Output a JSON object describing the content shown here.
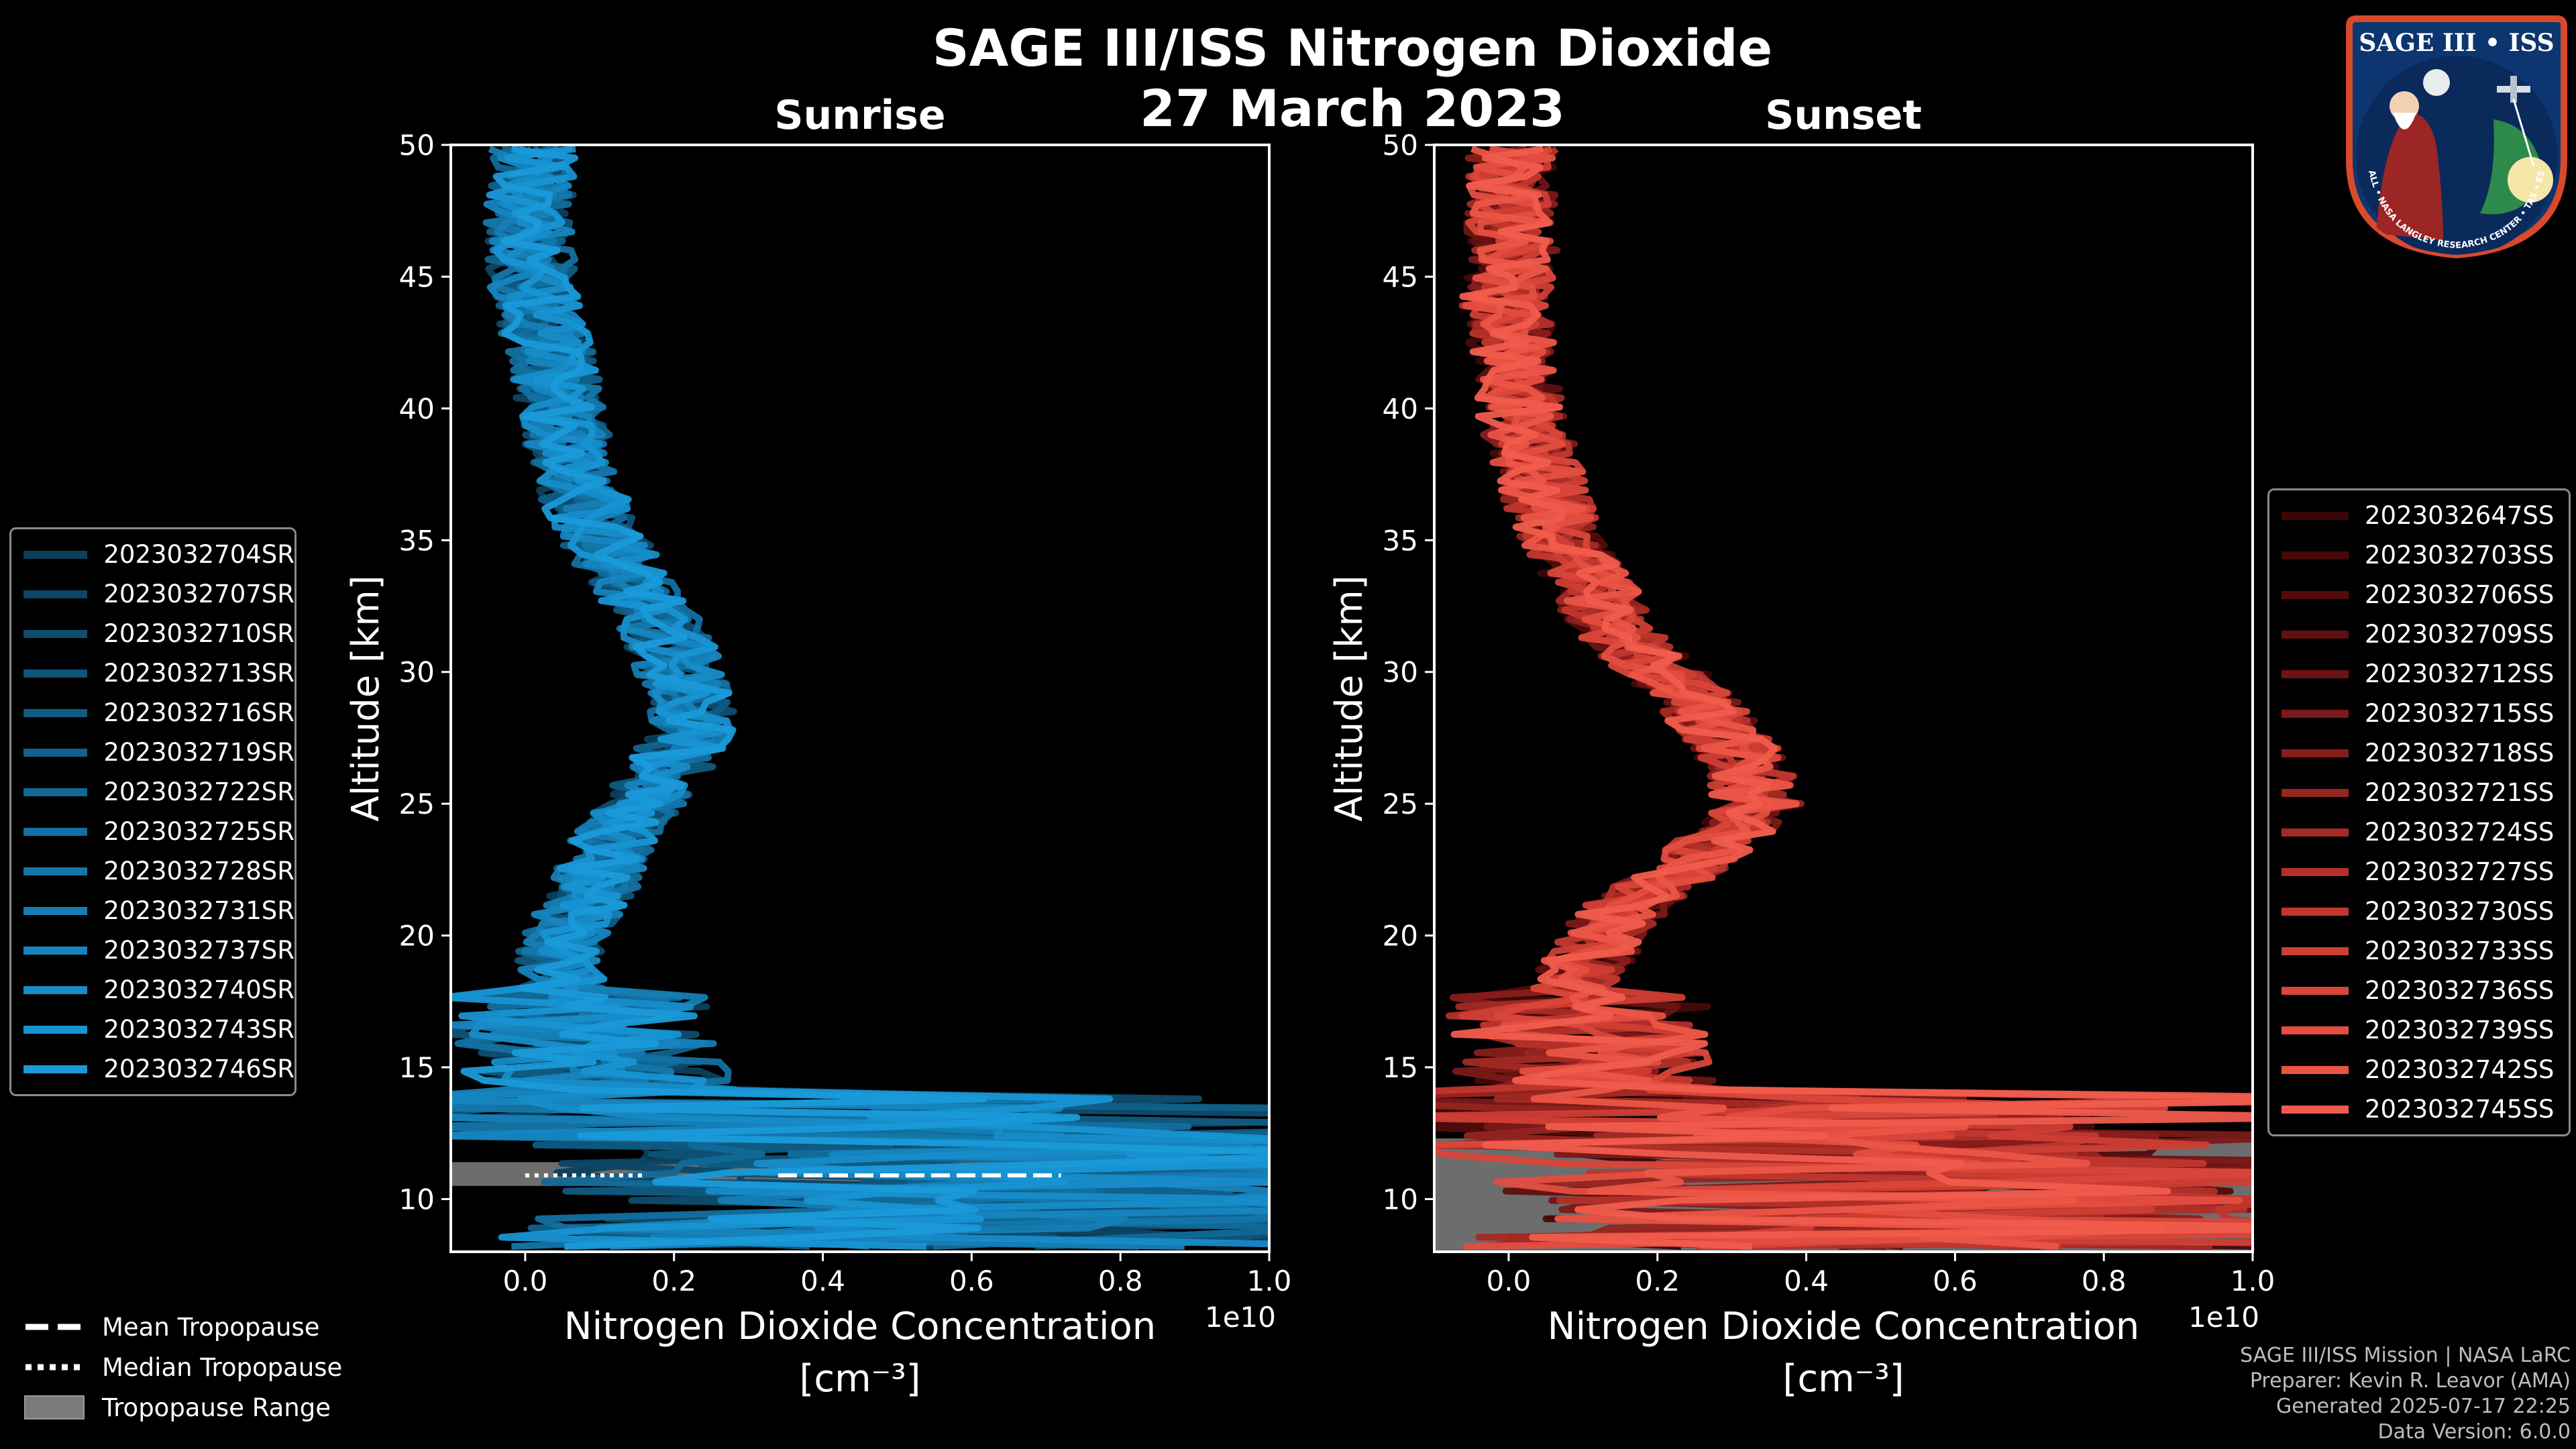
{
  "title": "SAGE III/ISS Nitrogen Dioxide",
  "date": "27 March 2023",
  "colors": {
    "sunrise": "#1a9ad6",
    "sunset": "#ef5a48",
    "trop_range": "#808080"
  },
  "chart_data": [
    {
      "type": "line",
      "panel": "Sunrise",
      "title": "Sunrise",
      "xlabel": "Nitrogen Dioxide Concentration",
      "xlabel_unit": "[cm⁻³]",
      "x_scale_label": "1e10",
      "ylabel": "Altitude [km]",
      "xlim": [
        -0.1,
        1.0
      ],
      "ylim": [
        8,
        50
      ],
      "xticks": [
        "0.0",
        "0.2",
        "0.4",
        "0.6",
        "0.8",
        "1.0"
      ],
      "yticks": [
        "10",
        "15",
        "20",
        "25",
        "30",
        "35",
        "40",
        "45",
        "50"
      ],
      "profile_mean": [
        [
          8.5,
          0.45
        ],
        [
          9,
          0.5
        ],
        [
          10,
          0.55
        ],
        [
          11,
          0.5
        ],
        [
          12,
          0.4
        ],
        [
          13,
          0.25
        ],
        [
          14,
          0.12
        ],
        [
          15,
          0.07
        ],
        [
          16,
          0.06
        ],
        [
          17,
          0.05
        ],
        [
          18,
          0.04
        ],
        [
          19,
          0.04
        ],
        [
          20,
          0.05
        ],
        [
          21,
          0.07
        ],
        [
          22,
          0.09
        ],
        [
          23,
          0.1
        ],
        [
          24,
          0.12
        ],
        [
          25,
          0.15
        ],
        [
          26,
          0.18
        ],
        [
          27,
          0.2
        ],
        [
          28,
          0.22
        ],
        [
          29,
          0.22
        ],
        [
          30,
          0.2
        ],
        [
          31,
          0.19
        ],
        [
          32,
          0.17
        ],
        [
          33,
          0.15
        ],
        [
          34,
          0.12
        ],
        [
          35,
          0.1
        ],
        [
          36,
          0.08
        ],
        [
          37,
          0.07
        ],
        [
          38,
          0.06
        ],
        [
          39,
          0.05
        ],
        [
          40,
          0.04
        ],
        [
          41,
          0.035
        ],
        [
          42,
          0.03
        ],
        [
          43,
          0.02
        ],
        [
          44,
          0.01
        ],
        [
          45,
          0.005
        ],
        [
          46,
          0.002
        ],
        [
          47,
          0.0
        ],
        [
          48,
          0.0
        ],
        [
          49,
          0.002
        ],
        [
          50,
          0.005
        ]
      ],
      "mean_tropopause_km": 10.9,
      "median_tropopause_km": 10.9,
      "tropopause_range_km": [
        10.5,
        11.4
      ],
      "series": [
        {
          "name": "2023032704SR",
          "color": "#0c3f5c"
        },
        {
          "name": "2023032707SR",
          "color": "#0d4665"
        },
        {
          "name": "2023032710SR",
          "color": "#0e4d6f"
        },
        {
          "name": "2023032713SR",
          "color": "#0f5479"
        },
        {
          "name": "2023032716SR",
          "color": "#105b83"
        },
        {
          "name": "2023032719SR",
          "color": "#11628d"
        },
        {
          "name": "2023032722SR",
          "color": "#126997"
        },
        {
          "name": "2023032725SR",
          "color": "#1370a1"
        },
        {
          "name": "2023032728SR",
          "color": "#1477ab"
        },
        {
          "name": "2023032731SR",
          "color": "#157eb5"
        },
        {
          "name": "2023032737SR",
          "color": "#1685bf"
        },
        {
          "name": "2023032740SR",
          "color": "#178cc9"
        },
        {
          "name": "2023032743SR",
          "color": "#1893d3"
        },
        {
          "name": "2023032746SR",
          "color": "#1a9ad9"
        }
      ]
    },
    {
      "type": "line",
      "panel": "Sunset",
      "title": "Sunset",
      "xlabel": "Nitrogen Dioxide Concentration",
      "xlabel_unit": "[cm⁻³]",
      "x_scale_label": "1e10",
      "ylabel": "Altitude [km]",
      "xlim": [
        -0.1,
        1.0
      ],
      "ylim": [
        8,
        50
      ],
      "xticks": [
        "0.0",
        "0.2",
        "0.4",
        "0.6",
        "0.8",
        "1.0"
      ],
      "yticks": [
        "10",
        "15",
        "20",
        "25",
        "30",
        "35",
        "40",
        "45",
        "50"
      ],
      "profile_mean": [
        [
          8.5,
          0.4
        ],
        [
          9,
          0.45
        ],
        [
          10,
          0.5
        ],
        [
          11,
          0.45
        ],
        [
          12,
          0.35
        ],
        [
          13,
          0.2
        ],
        [
          14,
          0.1
        ],
        [
          15,
          0.08
        ],
        [
          16,
          0.07
        ],
        [
          17,
          0.07
        ],
        [
          18,
          0.08
        ],
        [
          19,
          0.1
        ],
        [
          20,
          0.12
        ],
        [
          21,
          0.15
        ],
        [
          22,
          0.2
        ],
        [
          23,
          0.25
        ],
        [
          24,
          0.3
        ],
        [
          25,
          0.33
        ],
        [
          26,
          0.32
        ],
        [
          27,
          0.3
        ],
        [
          28,
          0.27
        ],
        [
          29,
          0.24
        ],
        [
          30,
          0.2
        ],
        [
          31,
          0.16
        ],
        [
          32,
          0.13
        ],
        [
          33,
          0.11
        ],
        [
          34,
          0.09
        ],
        [
          35,
          0.07
        ],
        [
          36,
          0.05
        ],
        [
          37,
          0.04
        ],
        [
          38,
          0.03
        ],
        [
          39,
          0.02
        ],
        [
          40,
          0.01
        ],
        [
          41,
          0.005
        ],
        [
          42,
          0.0
        ],
        [
          43,
          -0.005
        ],
        [
          44,
          -0.01
        ],
        [
          45,
          -0.005
        ],
        [
          46,
          0.0
        ],
        [
          47,
          -0.005
        ],
        [
          48,
          0.0
        ],
        [
          49,
          -0.005
        ],
        [
          50,
          0.0
        ]
      ],
      "tropopause_range_km": [
        8.0,
        12.3
      ],
      "series": [
        {
          "name": "2023032647SS",
          "color": "#3a0606"
        },
        {
          "name": "2023032703SS",
          "color": "#450909"
        },
        {
          "name": "2023032706SS",
          "color": "#520c0c"
        },
        {
          "name": "2023032709SS",
          "color": "#5f1010"
        },
        {
          "name": "2023032712SS",
          "color": "#6c1414"
        },
        {
          "name": "2023032715SS",
          "color": "#7a1919"
        },
        {
          "name": "2023032718SS",
          "color": "#881e1c"
        },
        {
          "name": "2023032721SS",
          "color": "#962420"
        },
        {
          "name": "2023032724SS",
          "color": "#a42a24"
        },
        {
          "name": "2023032727SS",
          "color": "#b23029"
        },
        {
          "name": "2023032730SS",
          "color": "#c0372e"
        },
        {
          "name": "2023032733SS",
          "color": "#cd3e34"
        },
        {
          "name": "2023032736SS",
          "color": "#d9463a"
        },
        {
          "name": "2023032739SS",
          "color": "#e34e40"
        },
        {
          "name": "2023032742SS",
          "color": "#eb5546"
        },
        {
          "name": "2023032745SS",
          "color": "#f05c4c"
        }
      ]
    }
  ],
  "tropopause_legend": {
    "mean": "Mean Tropopause",
    "median": "Median Tropopause",
    "range": "Tropopause Range"
  },
  "logo": {
    "text": "SAGE III • ISS",
    "ring": "BALL • NASA LANGLEY RESEARCH CENTER • TAS • ESA"
  },
  "credits": {
    "line1": "SAGE III/ISS Mission | NASA LaRC",
    "line2": "Preparer: Kevin R. Leavor (AMA)",
    "line3": "Generated 2025-07-17 22:25",
    "line4": "Data Version: 6.0.0"
  }
}
